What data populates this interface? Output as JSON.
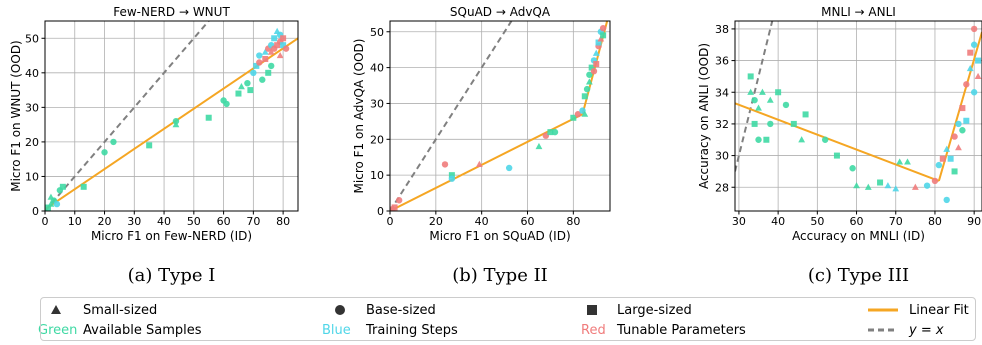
{
  "colors": {
    "green": "#3fd9a4",
    "blue": "#4fd6e8",
    "red": "#f07c7c",
    "linear_fit": "#f5a623",
    "identity": "#808080",
    "grid": "#b0b0b0"
  },
  "legend": {
    "small": "Small-sized",
    "base": "Base-sized",
    "large": "Large-sized",
    "linear_fit": "Linear Fit",
    "green_word": "Green",
    "green_desc": "Available Samples",
    "blue_word": "Blue",
    "blue_desc": "Training Steps",
    "red_word": "Red",
    "red_desc": "Tunable Parameters",
    "identity": "y = x"
  },
  "chart_data": [
    {
      "type": "scatter",
      "title": "Few-NERD → WNUT",
      "caption": "(a) Type I",
      "xlabel": "Micro F1 on Few-NERD (ID)",
      "ylabel": "Micro F1 on WNUT (OOD)",
      "xlim": [
        0,
        85
      ],
      "ylim": [
        0,
        55
      ],
      "xticks": [
        0,
        10,
        20,
        30,
        40,
        50,
        60,
        70,
        80
      ],
      "yticks": [
        0,
        10,
        20,
        30,
        40,
        50
      ],
      "grid": true,
      "fit": [
        [
          [
            0,
            0.5
          ],
          [
            85,
            50
          ]
        ]
      ],
      "identity": true,
      "points": [
        {
          "x": 1,
          "y": 1,
          "c": "green",
          "m": "s"
        },
        {
          "x": 2,
          "y": 2,
          "c": "green",
          "m": "^"
        },
        {
          "x": 3,
          "y": 3,
          "c": "green",
          "m": "o"
        },
        {
          "x": 2,
          "y": 4,
          "c": "green",
          "m": "^"
        },
        {
          "x": 4,
          "y": 2,
          "c": "blue",
          "m": "o"
        },
        {
          "x": 5,
          "y": 6,
          "c": "green",
          "m": "o"
        },
        {
          "x": 6,
          "y": 7,
          "c": "green",
          "m": "s"
        },
        {
          "x": 13,
          "y": 7,
          "c": "green",
          "m": "s"
        },
        {
          "x": 20,
          "y": 17,
          "c": "green",
          "m": "o"
        },
        {
          "x": 23,
          "y": 20,
          "c": "green",
          "m": "o"
        },
        {
          "x": 35,
          "y": 19,
          "c": "green",
          "m": "s"
        },
        {
          "x": 44,
          "y": 26,
          "c": "green",
          "m": "o"
        },
        {
          "x": 44,
          "y": 25,
          "c": "green",
          "m": "^"
        },
        {
          "x": 55,
          "y": 27,
          "c": "green",
          "m": "s"
        },
        {
          "x": 60,
          "y": 32,
          "c": "green",
          "m": "o"
        },
        {
          "x": 61,
          "y": 31,
          "c": "green",
          "m": "o"
        },
        {
          "x": 65,
          "y": 34,
          "c": "green",
          "m": "s"
        },
        {
          "x": 66,
          "y": 36,
          "c": "green",
          "m": "^"
        },
        {
          "x": 68,
          "y": 37,
          "c": "green",
          "m": "o"
        },
        {
          "x": 69,
          "y": 35,
          "c": "green",
          "m": "s"
        },
        {
          "x": 70,
          "y": 40,
          "c": "blue",
          "m": "o"
        },
        {
          "x": 71,
          "y": 42,
          "c": "blue",
          "m": "s"
        },
        {
          "x": 72,
          "y": 45,
          "c": "blue",
          "m": "o"
        },
        {
          "x": 72,
          "y": 43,
          "c": "red",
          "m": "o"
        },
        {
          "x": 73,
          "y": 38,
          "c": "green",
          "m": "o"
        },
        {
          "x": 74,
          "y": 46,
          "c": "blue",
          "m": "^"
        },
        {
          "x": 74,
          "y": 44,
          "c": "red",
          "m": "s"
        },
        {
          "x": 75,
          "y": 40,
          "c": "green",
          "m": "s"
        },
        {
          "x": 75,
          "y": 47,
          "c": "red",
          "m": "o"
        },
        {
          "x": 76,
          "y": 48,
          "c": "blue",
          "m": "o"
        },
        {
          "x": 76,
          "y": 46,
          "c": "red",
          "m": "^"
        },
        {
          "x": 77,
          "y": 50,
          "c": "blue",
          "m": "s"
        },
        {
          "x": 77,
          "y": 47,
          "c": "red",
          "m": "o"
        },
        {
          "x": 78,
          "y": 52,
          "c": "blue",
          "m": "^"
        },
        {
          "x": 78,
          "y": 48,
          "c": "red",
          "m": "s"
        },
        {
          "x": 79,
          "y": 49,
          "c": "red",
          "m": "o"
        },
        {
          "x": 79,
          "y": 51,
          "c": "blue",
          "m": "o"
        },
        {
          "x": 80,
          "y": 50,
          "c": "red",
          "m": "s"
        },
        {
          "x": 80,
          "y": 48,
          "c": "blue",
          "m": "s"
        },
        {
          "x": 81,
          "y": 47,
          "c": "red",
          "m": "o"
        },
        {
          "x": 79,
          "y": 45,
          "c": "red",
          "m": "^"
        },
        {
          "x": 76,
          "y": 42,
          "c": "green",
          "m": "o"
        }
      ]
    },
    {
      "type": "scatter",
      "title": "SQuAD → AdvQA",
      "caption": "(b) Type II",
      "xlabel": "Micro F1 on SQuAD (ID)",
      "ylabel": "Micro F1 on AdvQA (OOD)",
      "xlim": [
        0,
        96
      ],
      "ylim": [
        0,
        53
      ],
      "xticks": [
        0,
        20,
        40,
        60,
        80
      ],
      "yticks": [
        0,
        10,
        20,
        30,
        40,
        50
      ],
      "grid": true,
      "fit": [
        [
          [
            0,
            0
          ],
          [
            84,
            27
          ]
        ],
        [
          [
            84,
            27
          ],
          [
            96,
            56
          ]
        ]
      ],
      "identity": true,
      "points": [
        {
          "x": 1,
          "y": 0.5,
          "c": "red",
          "m": "o"
        },
        {
          "x": 2,
          "y": 1,
          "c": "red",
          "m": "s"
        },
        {
          "x": 4,
          "y": 3,
          "c": "red",
          "m": "o"
        },
        {
          "x": 24,
          "y": 13,
          "c": "red",
          "m": "o"
        },
        {
          "x": 27,
          "y": 10,
          "c": "green",
          "m": "s"
        },
        {
          "x": 27,
          "y": 9,
          "c": "blue",
          "m": "o"
        },
        {
          "x": 39,
          "y": 13,
          "c": "red",
          "m": "^"
        },
        {
          "x": 52,
          "y": 12,
          "c": "blue",
          "m": "o"
        },
        {
          "x": 65,
          "y": 18,
          "c": "green",
          "m": "^"
        },
        {
          "x": 68,
          "y": 21,
          "c": "red",
          "m": "o"
        },
        {
          "x": 70,
          "y": 22,
          "c": "green",
          "m": "s"
        },
        {
          "x": 72,
          "y": 22,
          "c": "green",
          "m": "o"
        },
        {
          "x": 80,
          "y": 26,
          "c": "green",
          "m": "s"
        },
        {
          "x": 82,
          "y": 27,
          "c": "red",
          "m": "o"
        },
        {
          "x": 84,
          "y": 28,
          "c": "blue",
          "m": "o"
        },
        {
          "x": 85,
          "y": 27,
          "c": "green",
          "m": "^"
        },
        {
          "x": 85,
          "y": 32,
          "c": "green",
          "m": "s"
        },
        {
          "x": 86,
          "y": 34,
          "c": "green",
          "m": "o"
        },
        {
          "x": 87,
          "y": 36,
          "c": "green",
          "m": "^"
        },
        {
          "x": 87,
          "y": 38,
          "c": "green",
          "m": "o"
        },
        {
          "x": 88,
          "y": 40,
          "c": "green",
          "m": "s"
        },
        {
          "x": 89,
          "y": 39,
          "c": "red",
          "m": "o"
        },
        {
          "x": 89,
          "y": 42,
          "c": "blue",
          "m": "o"
        },
        {
          "x": 90,
          "y": 41,
          "c": "red",
          "m": "s"
        },
        {
          "x": 90,
          "y": 44,
          "c": "blue",
          "m": "^"
        },
        {
          "x": 91,
          "y": 46,
          "c": "red",
          "m": "o"
        },
        {
          "x": 91,
          "y": 47,
          "c": "blue",
          "m": "s"
        },
        {
          "x": 92,
          "y": 48,
          "c": "red",
          "m": "^"
        },
        {
          "x": 92,
          "y": 50,
          "c": "blue",
          "m": "o"
        },
        {
          "x": 93,
          "y": 51,
          "c": "red",
          "m": "o"
        },
        {
          "x": 93,
          "y": 49,
          "c": "green",
          "m": "s"
        }
      ]
    },
    {
      "type": "scatter",
      "title": "MNLI → ANLI",
      "caption": "(c) Type III",
      "xlabel": "Accuracy on MNLI (ID)",
      "ylabel": "Accuracy on ANLI (OOD)",
      "xlim": [
        29,
        92
      ],
      "ylim": [
        26.5,
        38.5
      ],
      "xticks": [
        30,
        40,
        50,
        60,
        70,
        80,
        90
      ],
      "yticks": [
        28,
        30,
        32,
        34,
        36,
        38
      ],
      "grid": true,
      "fit": [
        [
          [
            29,
            33.3
          ],
          [
            81,
            28.4
          ]
        ],
        [
          [
            81,
            28.4
          ],
          [
            92,
            37.8
          ]
        ]
      ],
      "identity": true,
      "points": [
        {
          "x": 33,
          "y": 35,
          "c": "green",
          "m": "s"
        },
        {
          "x": 33,
          "y": 34,
          "c": "green",
          "m": "^"
        },
        {
          "x": 34,
          "y": 33.5,
          "c": "green",
          "m": "o"
        },
        {
          "x": 34,
          "y": 32,
          "c": "green",
          "m": "s"
        },
        {
          "x": 35,
          "y": 33,
          "c": "green",
          "m": "^"
        },
        {
          "x": 35,
          "y": 31,
          "c": "green",
          "m": "o"
        },
        {
          "x": 36,
          "y": 34,
          "c": "green",
          "m": "^"
        },
        {
          "x": 37,
          "y": 31,
          "c": "green",
          "m": "s"
        },
        {
          "x": 38,
          "y": 32,
          "c": "green",
          "m": "o"
        },
        {
          "x": 38,
          "y": 33.5,
          "c": "green",
          "m": "^"
        },
        {
          "x": 40,
          "y": 34,
          "c": "green",
          "m": "s"
        },
        {
          "x": 42,
          "y": 33.2,
          "c": "green",
          "m": "o"
        },
        {
          "x": 44,
          "y": 32,
          "c": "green",
          "m": "s"
        },
        {
          "x": 46,
          "y": 31,
          "c": "green",
          "m": "^"
        },
        {
          "x": 47,
          "y": 32.6,
          "c": "green",
          "m": "s"
        },
        {
          "x": 52,
          "y": 31,
          "c": "green",
          "m": "o"
        },
        {
          "x": 55,
          "y": 30,
          "c": "green",
          "m": "s"
        },
        {
          "x": 59,
          "y": 29.2,
          "c": "green",
          "m": "o"
        },
        {
          "x": 60,
          "y": 28.1,
          "c": "green",
          "m": "^"
        },
        {
          "x": 63,
          "y": 28,
          "c": "green",
          "m": "^"
        },
        {
          "x": 66,
          "y": 28.3,
          "c": "green",
          "m": "s"
        },
        {
          "x": 68,
          "y": 28.1,
          "c": "blue",
          "m": "^"
        },
        {
          "x": 70,
          "y": 27.9,
          "c": "blue",
          "m": "^"
        },
        {
          "x": 71,
          "y": 29.6,
          "c": "green",
          "m": "^"
        },
        {
          "x": 73,
          "y": 29.6,
          "c": "green",
          "m": "^"
        },
        {
          "x": 75,
          "y": 28,
          "c": "red",
          "m": "^"
        },
        {
          "x": 78,
          "y": 28.1,
          "c": "blue",
          "m": "o"
        },
        {
          "x": 80,
          "y": 28.4,
          "c": "red",
          "m": "o"
        },
        {
          "x": 81,
          "y": 29.4,
          "c": "blue",
          "m": "o"
        },
        {
          "x": 82,
          "y": 29.8,
          "c": "red",
          "m": "s"
        },
        {
          "x": 83,
          "y": 30.4,
          "c": "blue",
          "m": "^"
        },
        {
          "x": 83,
          "y": 27.2,
          "c": "blue",
          "m": "o"
        },
        {
          "x": 84,
          "y": 29.8,
          "c": "blue",
          "m": "s"
        },
        {
          "x": 85,
          "y": 31.2,
          "c": "red",
          "m": "o"
        },
        {
          "x": 85,
          "y": 29,
          "c": "green",
          "m": "s"
        },
        {
          "x": 86,
          "y": 32,
          "c": "blue",
          "m": "o"
        },
        {
          "x": 86,
          "y": 30.5,
          "c": "red",
          "m": "^"
        },
        {
          "x": 87,
          "y": 33,
          "c": "red",
          "m": "s"
        },
        {
          "x": 87,
          "y": 31.6,
          "c": "green",
          "m": "o"
        },
        {
          "x": 88,
          "y": 32.2,
          "c": "blue",
          "m": "s"
        },
        {
          "x": 88,
          "y": 34.5,
          "c": "red",
          "m": "o"
        },
        {
          "x": 89,
          "y": 35.5,
          "c": "blue",
          "m": "^"
        },
        {
          "x": 89,
          "y": 36.5,
          "c": "red",
          "m": "s"
        },
        {
          "x": 90,
          "y": 37,
          "c": "blue",
          "m": "o"
        },
        {
          "x": 90,
          "y": 38,
          "c": "red",
          "m": "o"
        },
        {
          "x": 91,
          "y": 36,
          "c": "blue",
          "m": "s"
        },
        {
          "x": 91,
          "y": 35,
          "c": "red",
          "m": "^"
        },
        {
          "x": 90,
          "y": 34,
          "c": "blue",
          "m": "o"
        }
      ]
    }
  ]
}
